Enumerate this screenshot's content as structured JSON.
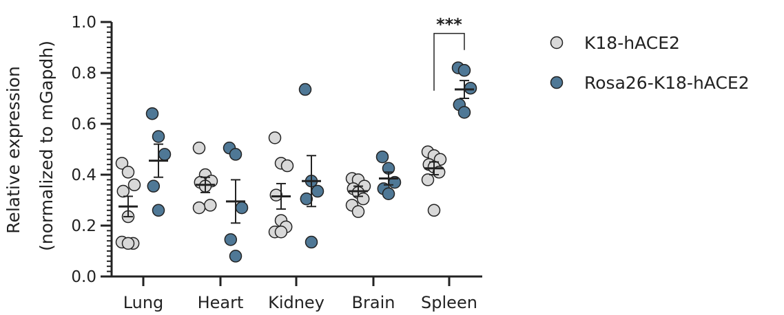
{
  "chart_data": {
    "type": "scatter",
    "ylabel_line1": "Relative expression",
    "ylabel_line2": "(normalized to mGapdh)",
    "ylim": [
      0,
      1.0
    ],
    "yticks": [
      "0.0",
      "0.2",
      "0.4",
      "0.6",
      "0.8",
      "1.0"
    ],
    "categories": [
      "Lung",
      "Heart",
      "Kidney",
      "Brain",
      "Spleen"
    ],
    "series": [
      {
        "name": "K18-hACE2",
        "color": "#d9d9d9",
        "points": [
          [
            0.445,
            0.41,
            0.36,
            0.335,
            0.235,
            0.13,
            0.135,
            0.13
          ],
          [
            0.505,
            0.4,
            0.375,
            0.37,
            0.355,
            0.28,
            0.27
          ],
          [
            0.545,
            0.445,
            0.435,
            0.32,
            0.22,
            0.195,
            0.175,
            0.175
          ],
          [
            0.385,
            0.38,
            0.355,
            0.345,
            0.33,
            0.305,
            0.28,
            0.255
          ],
          [
            0.49,
            0.475,
            0.46,
            0.44,
            0.43,
            0.41,
            0.38,
            0.26
          ]
        ],
        "mean": [
          0.275,
          0.36,
          0.315,
          0.335,
          0.425
        ],
        "sem": [
          0.04,
          0.03,
          0.05,
          0.02,
          0.025
        ]
      },
      {
        "name": "Rosa26-K18-hACE2",
        "color": "#4f7896",
        "points": [
          [
            0.64,
            0.55,
            0.48,
            0.355,
            0.26
          ],
          [
            0.505,
            0.48,
            0.27,
            0.145,
            0.08
          ],
          [
            0.735,
            0.375,
            0.335,
            0.305,
            0.135
          ],
          [
            0.47,
            0.425,
            0.37,
            0.345,
            0.325
          ],
          [
            0.82,
            0.81,
            0.74,
            0.675,
            0.645
          ]
        ],
        "mean": [
          0.455,
          0.295,
          0.375,
          0.385,
          0.735
        ],
        "sem": [
          0.065,
          0.085,
          0.1,
          0.025,
          0.035
        ]
      }
    ],
    "annotation": {
      "category": "Spleen",
      "text": "***"
    },
    "legend_position": "top-right"
  }
}
